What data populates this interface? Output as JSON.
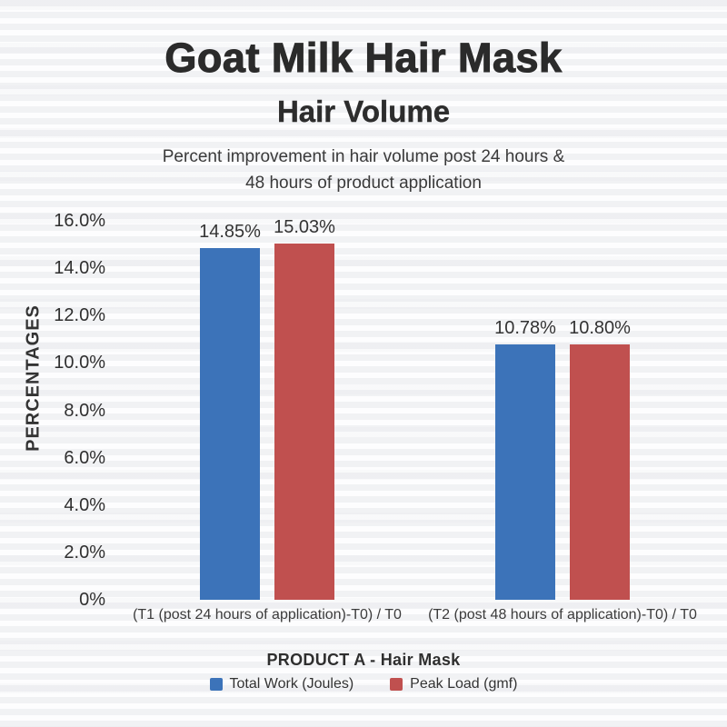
{
  "header": {
    "title": "Goat Milk Hair Mask",
    "subtitle": "Hair Volume",
    "description": "Percent improvement in hair volume post 24 hours &\n48 hours of product application"
  },
  "chart_data": {
    "type": "bar",
    "title": "Goat Milk Hair Mask",
    "subtitle": "Hair Volume",
    "ylabel": "PERCENTAGES",
    "xlabel": "PRODUCT A - Hair Mask",
    "ylim": [
      0,
      16
    ],
    "grid": false,
    "legend_position": "bottom",
    "yticks": [
      {
        "value": 0,
        "label": "0%"
      },
      {
        "value": 2,
        "label": "2.0%"
      },
      {
        "value": 4,
        "label": "4.0%"
      },
      {
        "value": 6,
        "label": "6.0%"
      },
      {
        "value": 8,
        "label": "8.0%"
      },
      {
        "value": 10,
        "label": "10.0%"
      },
      {
        "value": 12,
        "label": "12.0%"
      },
      {
        "value": 14,
        "label": "14.0%"
      },
      {
        "value": 16,
        "label": "16.0%"
      }
    ],
    "categories": [
      "(T1 (post 24 hours of application)-T0) / T0",
      "(T2 (post 48 hours of application)-T0) / T0"
    ],
    "series": [
      {
        "name": "Total Work (Joules)",
        "color": "#3c73b9",
        "values": [
          14.85,
          10.78
        ],
        "value_labels": [
          "14.85%",
          "10.78%"
        ]
      },
      {
        "name": "Peak Load (gmf)",
        "color": "#c0504f",
        "values": [
          15.03,
          10.8
        ],
        "value_labels": [
          "15.03%",
          "10.80%"
        ]
      }
    ]
  },
  "colors": {
    "background": "#fdfdfe",
    "title_text": "#2b2b2b",
    "body_text": "#3a3a3a",
    "bar_blue": "#3c73b9",
    "bar_red": "#c0504f"
  }
}
